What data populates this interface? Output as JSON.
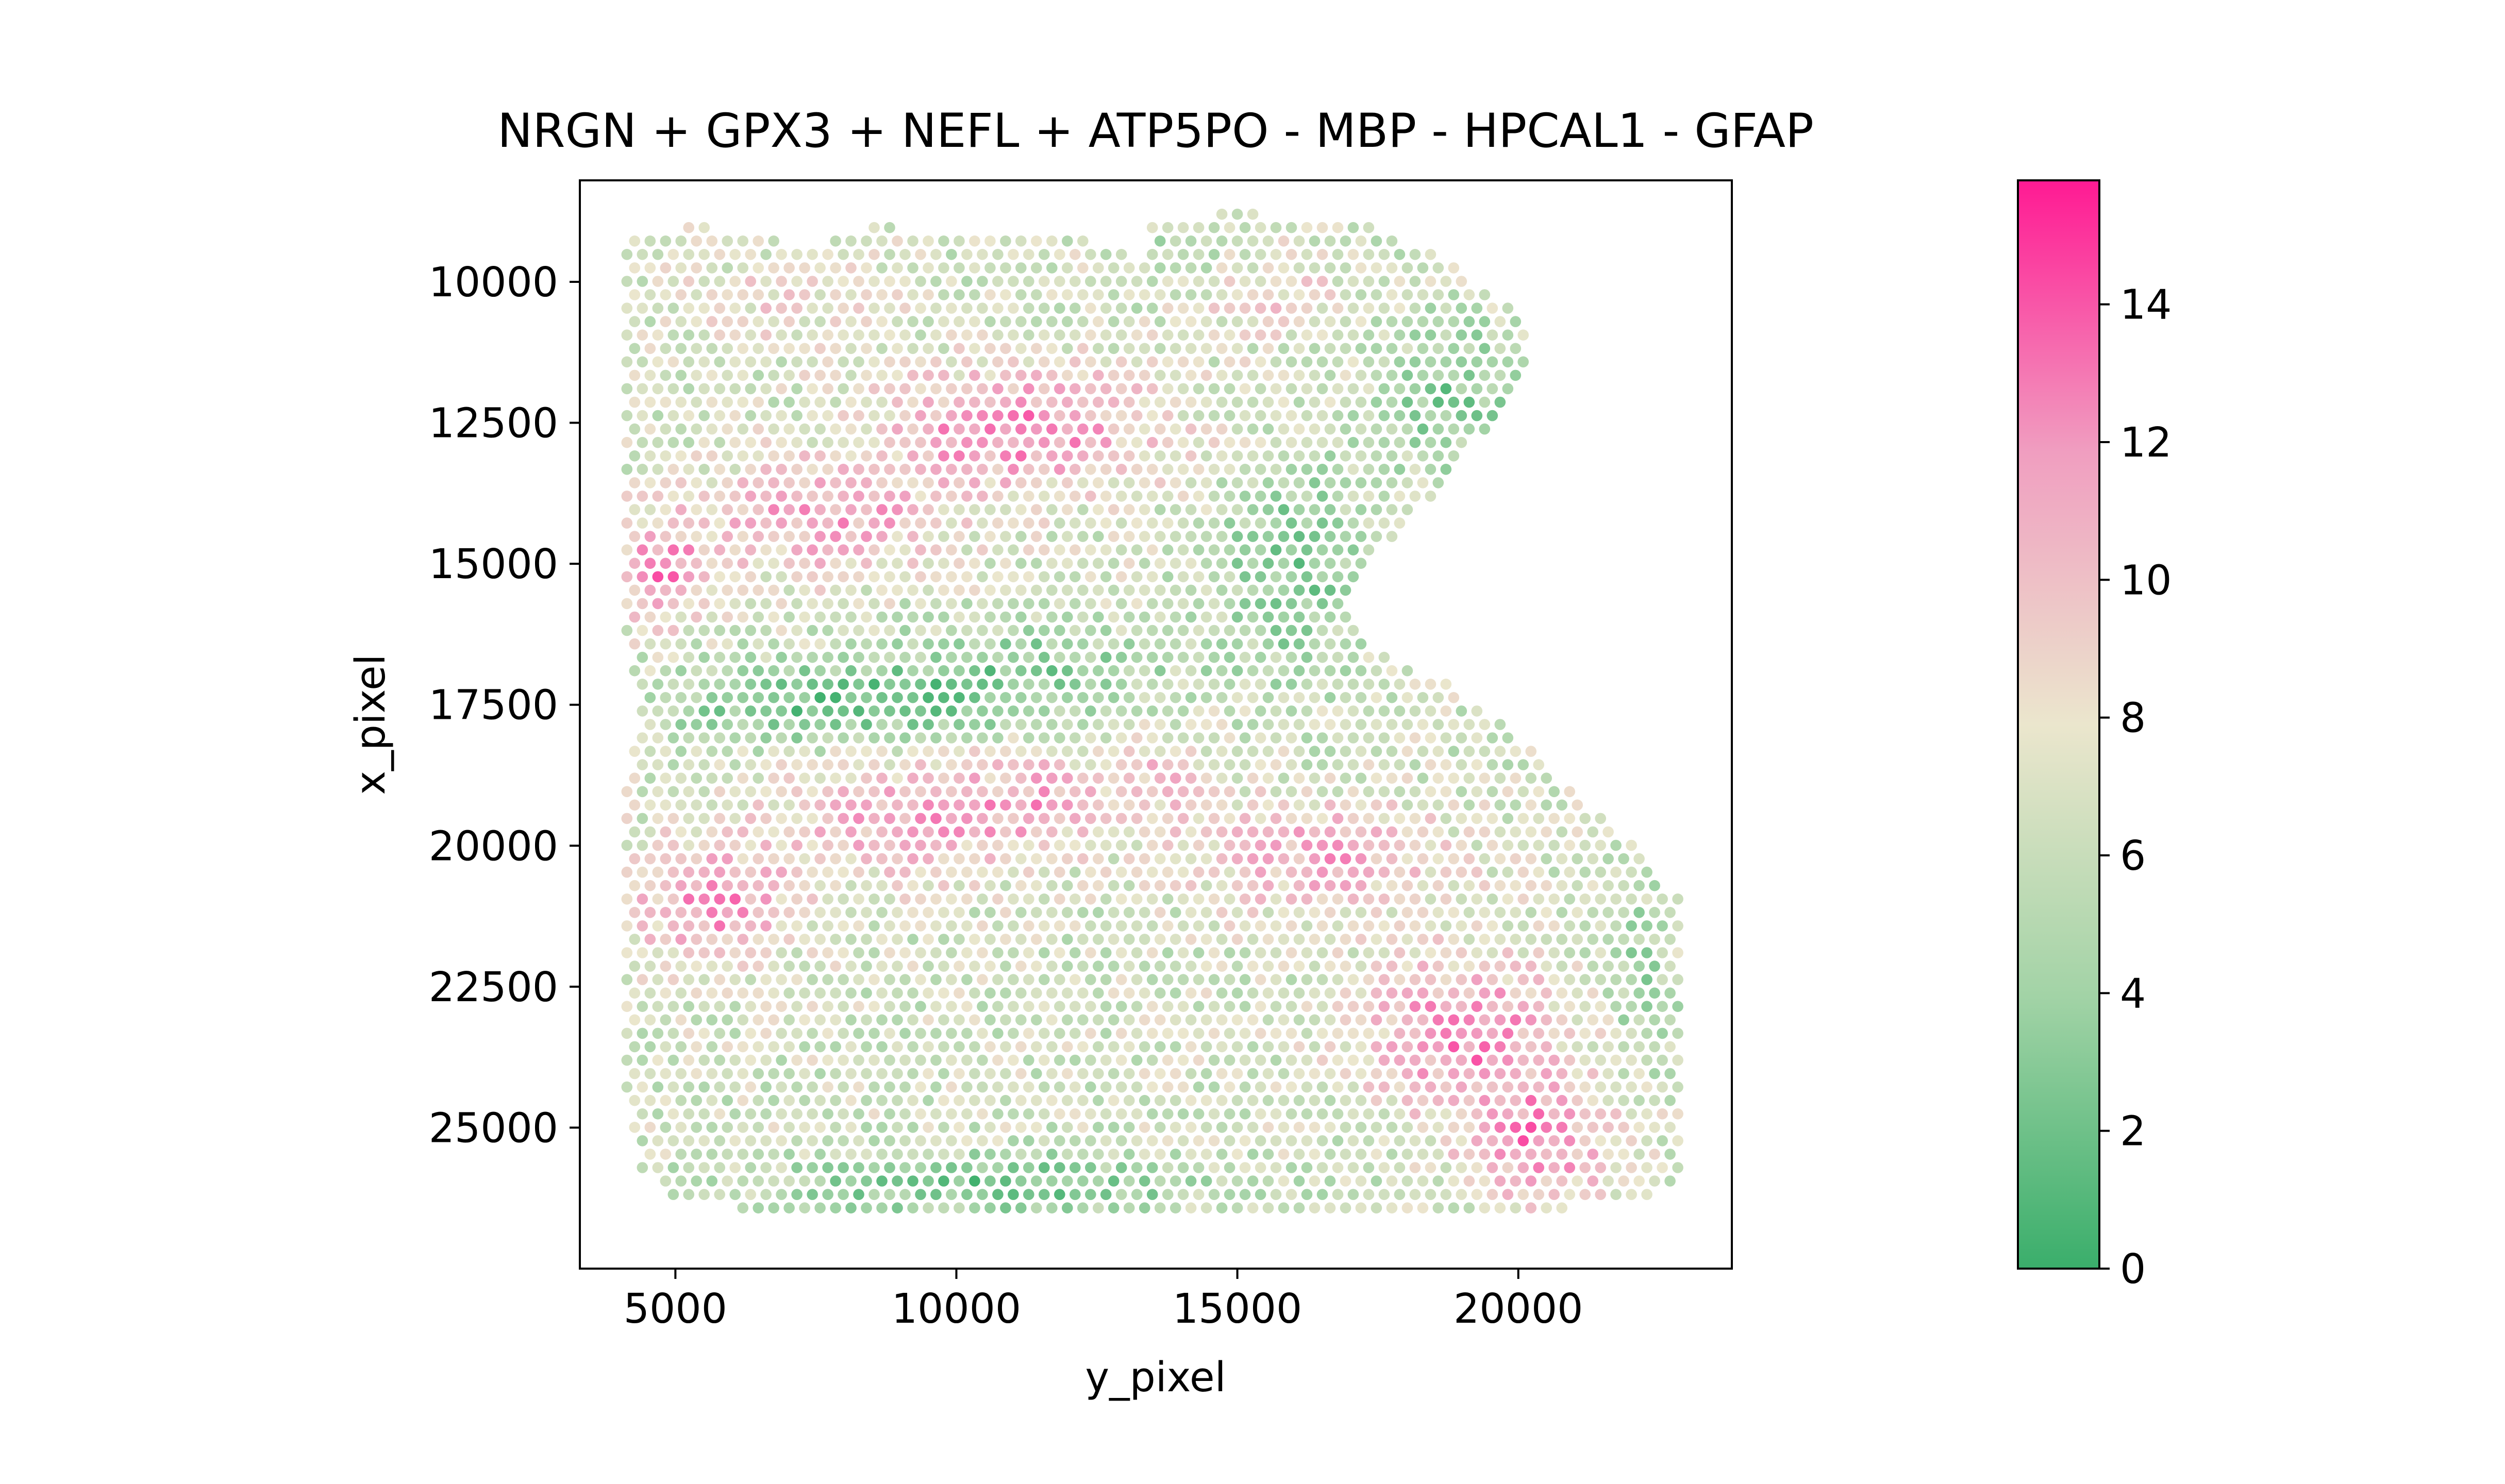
{
  "chart_data": {
    "type": "scatter",
    "title": "NRGN + GPX3 + NEFL + ATP5PO - MBP - HPCAL1 - GFAP",
    "xlabel": "y_pixel",
    "ylabel": "x_pixel",
    "xlim": [
      3300,
      23800
    ],
    "ylim": [
      8200,
      27500
    ],
    "y_inverted": true,
    "x_ticks": [
      5000,
      10000,
      15000,
      20000
    ],
    "y_ticks": [
      10000,
      12500,
      15000,
      17500,
      20000,
      22500,
      25000
    ],
    "x_tick_labels": [
      "5000",
      "10000",
      "15000",
      "20000"
    ],
    "y_tick_labels": [
      "10000",
      "12500",
      "15000",
      "17500",
      "20000",
      "22500",
      "25000"
    ],
    "grid": false,
    "marker_spacing": 275,
    "colorbar": {
      "range": [
        0,
        15.8
      ],
      "ticks": [
        0,
        2,
        4,
        6,
        8,
        10,
        12,
        14
      ],
      "tick_labels": [
        "0",
        "2",
        "4",
        "6",
        "8",
        "10",
        "12",
        "14"
      ],
      "colors": [
        "#3aae6b",
        "#a2d3a6",
        "#ebe6cd",
        "#f09ec0",
        "#ff1a93"
      ],
      "stops": [
        0,
        0.25,
        0.5,
        0.75,
        1
      ]
    },
    "tissue_outline": [
      [
        4100,
        9200
      ],
      [
        5200,
        9000
      ],
      [
        6500,
        9100
      ],
      [
        7300,
        9500
      ],
      [
        8500,
        9000
      ],
      [
        10000,
        9100
      ],
      [
        12200,
        9100
      ],
      [
        13300,
        9700
      ],
      [
        13500,
        8850
      ],
      [
        14500,
        8800
      ],
      [
        15500,
        8800
      ],
      [
        17500,
        9000
      ],
      [
        19000,
        9800
      ],
      [
        20200,
        10700
      ],
      [
        20100,
        11600
      ],
      [
        18800,
        13500
      ],
      [
        18000,
        14200
      ],
      [
        16900,
        15700
      ],
      [
        17300,
        16500
      ],
      [
        18800,
        17100
      ],
      [
        20100,
        18200
      ],
      [
        21200,
        19200
      ],
      [
        22300,
        20200
      ],
      [
        22900,
        21000
      ],
      [
        22900,
        25700
      ],
      [
        22500,
        26200
      ],
      [
        20500,
        26500
      ],
      [
        15000,
        26500
      ],
      [
        10000,
        26500
      ],
      [
        5000,
        26400
      ],
      [
        4400,
        25700
      ],
      [
        4100,
        24500
      ],
      [
        4100,
        18800
      ],
      [
        4300,
        18000
      ],
      [
        4400,
        17500
      ],
      [
        4100,
        16500
      ]
    ],
    "expression_hotspots": [
      {
        "x": 11200,
        "y": 12600,
        "sx": 2600,
        "sy": 1100,
        "value": 12.5
      },
      {
        "x": 7500,
        "y": 14200,
        "sx": 2300,
        "sy": 1000,
        "value": 11.5
      },
      {
        "x": 4700,
        "y": 15200,
        "sx": 800,
        "sy": 900,
        "value": 12.5
      },
      {
        "x": 9000,
        "y": 19500,
        "sx": 2200,
        "sy": 1100,
        "value": 11.0
      },
      {
        "x": 5600,
        "y": 21000,
        "sx": 1500,
        "sy": 1100,
        "value": 12.0
      },
      {
        "x": 11500,
        "y": 19200,
        "sx": 1300,
        "sy": 900,
        "value": 10.0
      },
      {
        "x": 16500,
        "y": 20200,
        "sx": 2300,
        "sy": 1000,
        "value": 11.0
      },
      {
        "x": 19000,
        "y": 23300,
        "sx": 1800,
        "sy": 1400,
        "value": 12.5
      },
      {
        "x": 20400,
        "y": 25300,
        "sx": 1400,
        "sy": 1100,
        "value": 12.0
      },
      {
        "x": 13600,
        "y": 18800,
        "sx": 1100,
        "sy": 800,
        "value": 9.5
      },
      {
        "x": 15500,
        "y": 10200,
        "sx": 1500,
        "sy": 800,
        "value": 9.0
      },
      {
        "x": 7000,
        "y": 10300,
        "sx": 1800,
        "sy": 900,
        "value": 8.5
      }
    ],
    "expression_lowspots": [
      {
        "x": 8000,
        "y": 17500,
        "sx": 3200,
        "sy": 700,
        "value": 2.0
      },
      {
        "x": 16000,
        "y": 15000,
        "sx": 1300,
        "sy": 2000,
        "value": 3.0
      },
      {
        "x": 18800,
        "y": 12000,
        "sx": 1200,
        "sy": 1300,
        "value": 3.0
      },
      {
        "x": 10500,
        "y": 26000,
        "sx": 4000,
        "sy": 500,
        "value": 2.0
      },
      {
        "x": 22200,
        "y": 22500,
        "sx": 600,
        "sy": 1500,
        "value": 3.5
      },
      {
        "x": 14000,
        "y": 9600,
        "sx": 1000,
        "sy": 700,
        "value": 4.5
      },
      {
        "x": 11500,
        "y": 16800,
        "sx": 2500,
        "sy": 800,
        "value": 3.5
      }
    ],
    "base_value": 6.5
  }
}
